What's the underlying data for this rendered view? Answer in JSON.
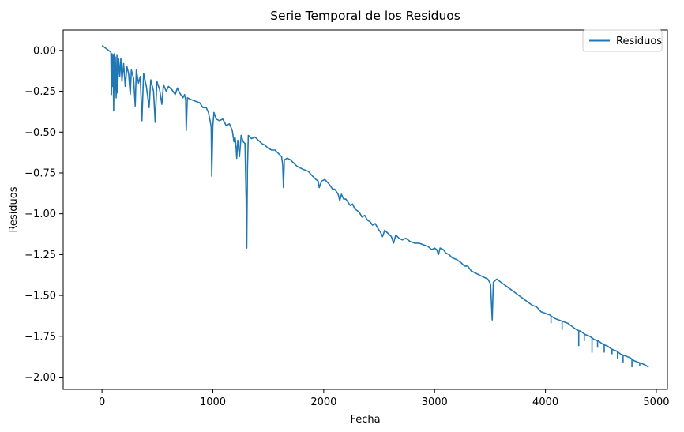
{
  "chart_data": {
    "type": "line",
    "title": "Serie Temporal de los Residuos",
    "xlabel": "Fecha",
    "ylabel": "Residuos",
    "xlim": [
      -350,
      5100
    ],
    "ylim": [
      -2.075,
      0.125
    ],
    "xticks": [
      0,
      1000,
      2000,
      3000,
      4000,
      5000
    ],
    "xtick_labels": [
      "0",
      "1000",
      "2000",
      "3000",
      "4000",
      "5000"
    ],
    "yticks": [
      0.0,
      -0.25,
      -0.5,
      -0.75,
      -1.0,
      -1.25,
      -1.5,
      -1.75,
      -2.0
    ],
    "ytick_labels": [
      "0.00",
      "−0.25",
      "−0.50",
      "−0.75",
      "−1.00",
      "−1.25",
      "−1.50",
      "−1.75",
      "−2.00"
    ],
    "grid": false,
    "legend_position": "top-right",
    "series": [
      {
        "name": "Residuos",
        "color": "#1f77b4",
        "points": [
          [
            0,
            0.03
          ],
          [
            80,
            -0.01
          ],
          [
            85,
            -0.27
          ],
          [
            90,
            -0.02
          ],
          [
            95,
            -0.22
          ],
          [
            100,
            -0.03
          ],
          [
            105,
            -0.37
          ],
          [
            110,
            -0.02
          ],
          [
            115,
            -0.24
          ],
          [
            120,
            -0.04
          ],
          [
            128,
            -0.29
          ],
          [
            135,
            -0.03
          ],
          [
            140,
            -0.26
          ],
          [
            150,
            -0.05
          ],
          [
            160,
            -0.16
          ],
          [
            170,
            -0.05
          ],
          [
            180,
            -0.19
          ],
          [
            195,
            -0.08
          ],
          [
            210,
            -0.22
          ],
          [
            225,
            -0.1
          ],
          [
            240,
            -0.14
          ],
          [
            255,
            -0.27
          ],
          [
            265,
            -0.12
          ],
          [
            285,
            -0.17
          ],
          [
            300,
            -0.34
          ],
          [
            310,
            -0.12
          ],
          [
            330,
            -0.2
          ],
          [
            345,
            -0.16
          ],
          [
            360,
            -0.43
          ],
          [
            375,
            -0.14
          ],
          [
            400,
            -0.22
          ],
          [
            425,
            -0.35
          ],
          [
            440,
            -0.18
          ],
          [
            465,
            -0.25
          ],
          [
            480,
            -0.44
          ],
          [
            495,
            -0.19
          ],
          [
            520,
            -0.24
          ],
          [
            540,
            -0.33
          ],
          [
            555,
            -0.21
          ],
          [
            580,
            -0.25
          ],
          [
            600,
            -0.22
          ],
          [
            630,
            -0.24
          ],
          [
            660,
            -0.27
          ],
          [
            680,
            -0.23
          ],
          [
            700,
            -0.26
          ],
          [
            730,
            -0.29
          ],
          [
            745,
            -0.27
          ],
          [
            755,
            -0.3
          ],
          [
            760,
            -0.49
          ],
          [
            770,
            -0.29
          ],
          [
            800,
            -0.3
          ],
          [
            840,
            -0.31
          ],
          [
            880,
            -0.32
          ],
          [
            910,
            -0.35
          ],
          [
            940,
            -0.35
          ],
          [
            960,
            -0.38
          ],
          [
            975,
            -0.43
          ],
          [
            985,
            -0.47
          ],
          [
            990,
            -0.77
          ],
          [
            1000,
            -0.46
          ],
          [
            1010,
            -0.38
          ],
          [
            1030,
            -0.42
          ],
          [
            1060,
            -0.43
          ],
          [
            1090,
            -0.42
          ],
          [
            1120,
            -0.46
          ],
          [
            1150,
            -0.45
          ],
          [
            1175,
            -0.49
          ],
          [
            1190,
            -0.56
          ],
          [
            1200,
            -0.53
          ],
          [
            1210,
            -0.6
          ],
          [
            1215,
            -0.66
          ],
          [
            1225,
            -0.55
          ],
          [
            1240,
            -0.65
          ],
          [
            1255,
            -0.52
          ],
          [
            1275,
            -0.56
          ],
          [
            1290,
            -0.57
          ],
          [
            1300,
            -0.9
          ],
          [
            1306,
            -1.21
          ],
          [
            1312,
            -0.72
          ],
          [
            1320,
            -0.52
          ],
          [
            1350,
            -0.54
          ],
          [
            1380,
            -0.53
          ],
          [
            1410,
            -0.55
          ],
          [
            1440,
            -0.57
          ],
          [
            1470,
            -0.58
          ],
          [
            1500,
            -0.6
          ],
          [
            1530,
            -0.61
          ],
          [
            1560,
            -0.61
          ],
          [
            1590,
            -0.63
          ],
          [
            1620,
            -0.65
          ],
          [
            1630,
            -0.7
          ],
          [
            1637,
            -0.84
          ],
          [
            1645,
            -0.67
          ],
          [
            1670,
            -0.66
          ],
          [
            1700,
            -0.67
          ],
          [
            1730,
            -0.69
          ],
          [
            1760,
            -0.71
          ],
          [
            1790,
            -0.72
          ],
          [
            1820,
            -0.73
          ],
          [
            1860,
            -0.74
          ],
          [
            1900,
            -0.77
          ],
          [
            1930,
            -0.79
          ],
          [
            1950,
            -0.8
          ],
          [
            1960,
            -0.84
          ],
          [
            1980,
            -0.8
          ],
          [
            2010,
            -0.79
          ],
          [
            2050,
            -0.82
          ],
          [
            2080,
            -0.85
          ],
          [
            2100,
            -0.85
          ],
          [
            2130,
            -0.88
          ],
          [
            2145,
            -0.92
          ],
          [
            2160,
            -0.88
          ],
          [
            2180,
            -0.91
          ],
          [
            2200,
            -0.91
          ],
          [
            2220,
            -0.93
          ],
          [
            2240,
            -0.95
          ],
          [
            2260,
            -0.94
          ],
          [
            2280,
            -0.97
          ],
          [
            2300,
            -0.98
          ],
          [
            2320,
            -0.99
          ],
          [
            2345,
            -1.02
          ],
          [
            2370,
            -1.01
          ],
          [
            2395,
            -1.04
          ],
          [
            2420,
            -1.05
          ],
          [
            2440,
            -1.07
          ],
          [
            2465,
            -1.06
          ],
          [
            2490,
            -1.09
          ],
          [
            2510,
            -1.11
          ],
          [
            2530,
            -1.14
          ],
          [
            2550,
            -1.1
          ],
          [
            2580,
            -1.12
          ],
          [
            2610,
            -1.14
          ],
          [
            2630,
            -1.18
          ],
          [
            2650,
            -1.13
          ],
          [
            2680,
            -1.15
          ],
          [
            2710,
            -1.16
          ],
          [
            2740,
            -1.15
          ],
          [
            2780,
            -1.17
          ],
          [
            2820,
            -1.18
          ],
          [
            2860,
            -1.18
          ],
          [
            2900,
            -1.19
          ],
          [
            2940,
            -1.2
          ],
          [
            2975,
            -1.22
          ],
          [
            3000,
            -1.21
          ],
          [
            3020,
            -1.22
          ],
          [
            3035,
            -1.25
          ],
          [
            3050,
            -1.21
          ],
          [
            3080,
            -1.22
          ],
          [
            3100,
            -1.24
          ],
          [
            3130,
            -1.25
          ],
          [
            3160,
            -1.27
          ],
          [
            3200,
            -1.28
          ],
          [
            3240,
            -1.3
          ],
          [
            3270,
            -1.32
          ],
          [
            3300,
            -1.32
          ],
          [
            3330,
            -1.35
          ],
          [
            3360,
            -1.36
          ],
          [
            3390,
            -1.37
          ],
          [
            3420,
            -1.38
          ],
          [
            3450,
            -1.39
          ],
          [
            3480,
            -1.4
          ],
          [
            3505,
            -1.43
          ],
          [
            3515,
            -1.58
          ],
          [
            3520,
            -1.65
          ],
          [
            3530,
            -1.42
          ],
          [
            3560,
            -1.4
          ],
          [
            3600,
            -1.42
          ],
          [
            3640,
            -1.44
          ],
          [
            3680,
            -1.46
          ],
          [
            3720,
            -1.48
          ],
          [
            3760,
            -1.5
          ],
          [
            3800,
            -1.52
          ],
          [
            3840,
            -1.54
          ],
          [
            3880,
            -1.56
          ],
          [
            3920,
            -1.57
          ],
          [
            3960,
            -1.6
          ],
          [
            4000,
            -1.61
          ],
          [
            4040,
            -1.62
          ],
          [
            4080,
            -1.64
          ],
          [
            4120,
            -1.65
          ],
          [
            4160,
            -1.66
          ],
          [
            4200,
            -1.67
          ],
          [
            4240,
            -1.69
          ],
          [
            4280,
            -1.71
          ],
          [
            4320,
            -1.72
          ],
          [
            4360,
            -1.74
          ],
          [
            4400,
            -1.75
          ],
          [
            4440,
            -1.77
          ],
          [
            4480,
            -1.78
          ],
          [
            4520,
            -1.8
          ],
          [
            4560,
            -1.81
          ],
          [
            4600,
            -1.83
          ],
          [
            4640,
            -1.84
          ],
          [
            4680,
            -1.86
          ],
          [
            4720,
            -1.87
          ],
          [
            4760,
            -1.88
          ],
          [
            4800,
            -1.9
          ],
          [
            4840,
            -1.91
          ],
          [
            4880,
            -1.92
          ],
          [
            4910,
            -1.93
          ],
          [
            4930,
            -1.94
          ]
        ],
        "dips": [
          [
            4050,
            -1.67
          ],
          [
            4150,
            -1.71
          ],
          [
            4300,
            -1.81
          ],
          [
            4350,
            -1.78
          ],
          [
            4420,
            -1.85
          ],
          [
            4470,
            -1.82
          ],
          [
            4530,
            -1.85
          ],
          [
            4600,
            -1.86
          ],
          [
            4650,
            -1.89
          ],
          [
            4700,
            -1.91
          ],
          [
            4780,
            -1.94
          ],
          [
            4850,
            -1.93
          ]
        ]
      }
    ]
  }
}
